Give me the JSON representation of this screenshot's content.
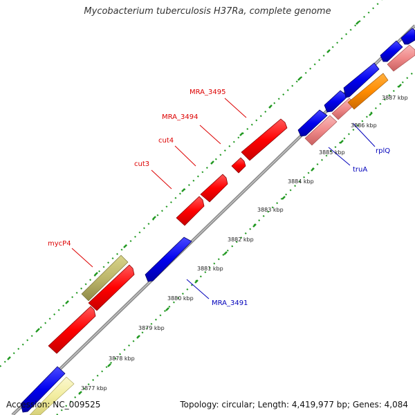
{
  "header": {
    "title": "Mycobacterium tuberculosis H37Ra, complete genome"
  },
  "footer": {
    "accession": "Accession: NC_009525",
    "summary": "Topology: circular; Length: 4,419,977 bp; Genes: 4,084"
  },
  "colors": {
    "forward_gene": "#ff0000",
    "reverse_gene": "#0000ee",
    "backbone": "#8c8c8c",
    "tick_dots": "#229922",
    "olive_feature": "#bdb76b",
    "pale_yellow_feature": "#f2eda0",
    "pink_feature": "#f08a8a",
    "orange_feature": "#ff8c00",
    "label_forward": "#dd0000",
    "label_reverse": "#0000bb",
    "tick_label": "#222222"
  },
  "kbp_ticks": [
    "3877 kbp",
    "3878 kbp",
    "3879 kbp",
    "3880 kbp",
    "3881 kbp",
    "3882 kbp",
    "3883 kbp",
    "3884 kbp",
    "3885 kbp",
    "3886 kbp",
    "3887 kbp"
  ],
  "gene_labels_forward": [
    "mycP4",
    "cut3",
    "cut4",
    "MRA_3494",
    "MRA_3495"
  ],
  "gene_labels_reverse": [
    "MRA_3491",
    "truA",
    "rplQ"
  ]
}
